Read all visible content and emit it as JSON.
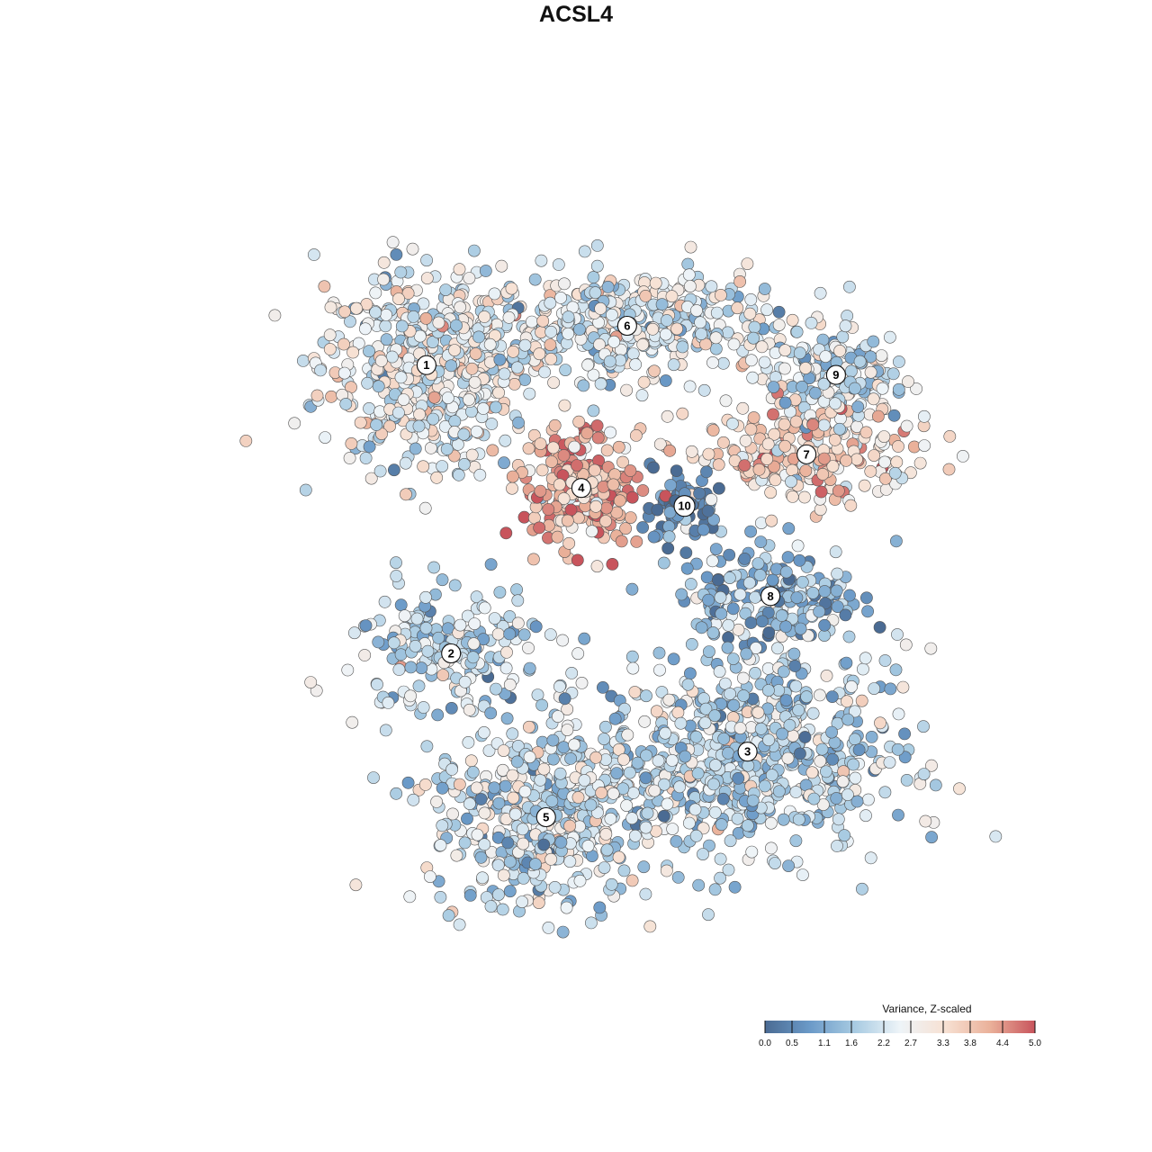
{
  "chart_data": {
    "type": "scatter",
    "title": "ACSL4",
    "legend": {
      "title": "Variance, Z-scaled",
      "position": "bottom-right",
      "ticks": [
        0.0,
        0.5,
        1.1,
        1.6,
        2.2,
        2.7,
        3.3,
        3.8,
        4.4,
        5.0
      ],
      "tick_labels": [
        "0.0",
        "0.5",
        "1.1",
        "1.6",
        "2.2",
        "2.7",
        "3.3",
        "3.8",
        "4.4",
        "5.0"
      ],
      "range": [
        0,
        5
      ],
      "colors": [
        "#4a6b93",
        "#6b9ac8",
        "#a8cbe2",
        "#eef4f8",
        "#f7e1d3",
        "#eab19a",
        "#c8545c"
      ]
    },
    "x_range": [
      -50,
      50
    ],
    "y_range": [
      -50,
      50
    ],
    "grid": false,
    "clusters": [
      {
        "label": "1",
        "x": -21.0,
        "y": 25.2,
        "mean": 2.5,
        "sx": 6.5,
        "sy": 6.0,
        "n": 520
      },
      {
        "label": "6",
        "x": 3.5,
        "y": 30.0,
        "mean": 2.3,
        "sx": 9.0,
        "sy": 3.3,
        "n": 420
      },
      {
        "label": "4",
        "x": -2.1,
        "y": 10.2,
        "mean": 4.0,
        "sx": 3.6,
        "sy": 3.6,
        "n": 230
      },
      {
        "label": "10",
        "x": 10.5,
        "y": 8.0,
        "mean": 0.6,
        "sx": 2.0,
        "sy": 2.4,
        "n": 70
      },
      {
        "label": "7",
        "x": 25.4,
        "y": 14.3,
        "mean": 3.4,
        "sx": 7.0,
        "sy": 3.0,
        "n": 230
      },
      {
        "label": "9",
        "x": 29.0,
        "y": 24.0,
        "mean": 2.0,
        "sx": 4.5,
        "sy": 3.0,
        "n": 150
      },
      {
        "label": "8",
        "x": 21.0,
        "y": -3.0,
        "mean": 1.2,
        "sx": 5.5,
        "sy": 3.2,
        "n": 190
      },
      {
        "label": "2",
        "x": -18.0,
        "y": -10.0,
        "mean": 1.9,
        "sx": 6.0,
        "sy": 4.0,
        "n": 190
      },
      {
        "label": "3",
        "x": 18.2,
        "y": -22.0,
        "mean": 1.9,
        "sx": 9.5,
        "sy": 6.0,
        "n": 650
      },
      {
        "label": "5",
        "x": -6.4,
        "y": -30.0,
        "mean": 2.1,
        "sx": 7.0,
        "sy": 5.5,
        "n": 480
      }
    ]
  }
}
